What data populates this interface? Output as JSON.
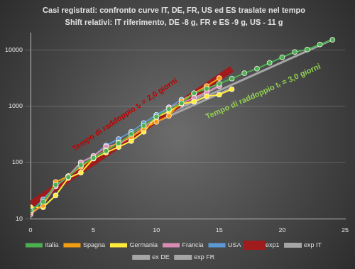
{
  "chart_data": {
    "type": "line",
    "title": "Casi registrati: confronto curve IT, DE, FR, US ed ES traslate nel tempo",
    "subtitle": "Shift relativi: IT riferimento, DE -8 g, FR e ES -9 g, US - 11 g",
    "x": [
      0,
      1,
      2,
      3,
      4,
      5,
      6,
      7,
      8,
      9,
      10,
      11,
      12,
      13,
      14,
      15,
      16,
      17,
      18,
      19,
      20,
      21,
      22,
      23,
      24
    ],
    "xlim": [
      0,
      25
    ],
    "xticks": [
      0,
      5,
      10,
      15,
      20,
      25
    ],
    "ylim": [
      10,
      20000
    ],
    "yticks": [
      10,
      100,
      1000,
      10000
    ],
    "log": "y",
    "grid": true,
    "legend": "bottom",
    "series": [
      {
        "name": "Italia",
        "color": "#4caf50",
        "marker": "circle",
        "line_style": "solid",
        "values": [
          14,
          20,
          40,
          55,
          90,
          120,
          160,
          220,
          320,
          450,
          650,
          890,
          1130,
          1700,
          2040,
          2500,
          3090,
          3860,
          4640,
          5880,
          7380,
          9170,
          10150,
          12460,
          15110
        ]
      },
      {
        "name": "Spagna",
        "color": "#f39c12",
        "marker": "circle",
        "line_style": "solid",
        "values": [
          13,
          17,
          45,
          57,
          84,
          120,
          165,
          228,
          282,
          401,
          525,
          674,
          1231,
          1695,
          2277,
          3146,
          null,
          null,
          null,
          null,
          null,
          null,
          null,
          null,
          null
        ]
      },
      {
        "name": "Germania",
        "color": "#ffeb3b",
        "marker": "circle",
        "line_style": "solid",
        "values": [
          16,
          16,
          26,
          53,
          66,
          117,
          150,
          188,
          240,
          350,
          640,
          800,
          1100,
          1200,
          1500,
          1600,
          2000,
          null,
          null,
          null,
          null,
          null,
          null,
          null,
          null
        ]
      },
      {
        "name": "Francia",
        "color": "#d98cb3",
        "marker": "circle",
        "line_style": "solid",
        "values": [
          12,
          18,
          38,
          57,
          100,
          130,
          191,
          212,
          285,
          423,
          613,
          949,
          1126,
          1412,
          1784,
          2281,
          null,
          null,
          null,
          null,
          null,
          null,
          null,
          null,
          null
        ]
      },
      {
        "name": "USA",
        "color": "#5b9bd5",
        "marker": "circle",
        "line_style": "solid",
        "values": [
          13,
          22,
          38,
          57,
          100,
          130,
          200,
          260,
          350,
          500,
          700,
          950,
          1300,
          1650,
          2200,
          null,
          null,
          null,
          null,
          null,
          null,
          null,
          null,
          null,
          null
        ]
      },
      {
        "name": "exp1",
        "color": "#a01c1c",
        "marker": "none",
        "line_style": "thick",
        "x": [
          0,
          16
        ],
        "values": [
          18,
          4600
        ]
      },
      {
        "name": "exp IT",
        "color": "#a6a6a6",
        "marker": "none",
        "line_style": "solid",
        "x": [
          10,
          24
        ],
        "values": [
          600,
          15200
        ]
      },
      {
        "name": "ex DE",
        "color": "#a6a6a6",
        "marker": "none",
        "line_style": "solid",
        "x": [
          9,
          16
        ],
        "values": [
          420,
          2100
        ]
      },
      {
        "name": "exp FR",
        "color": "#a6a6a6",
        "marker": "none",
        "line_style": "solid",
        "x": [
          9,
          15
        ],
        "values": [
          420,
          2300
        ]
      }
    ],
    "annotations": [
      {
        "text": "Tempo di raddoppio tᵣ = 2,0 giorni",
        "x": 7.5,
        "y": 700,
        "color": "#c00000",
        "series": "exp1"
      },
      {
        "text": "Tempo di raddoppio tᵣ = 3,0 giorni",
        "x": 18.5,
        "y": 1800,
        "color": "#92d050",
        "series": "exp IT"
      }
    ]
  }
}
